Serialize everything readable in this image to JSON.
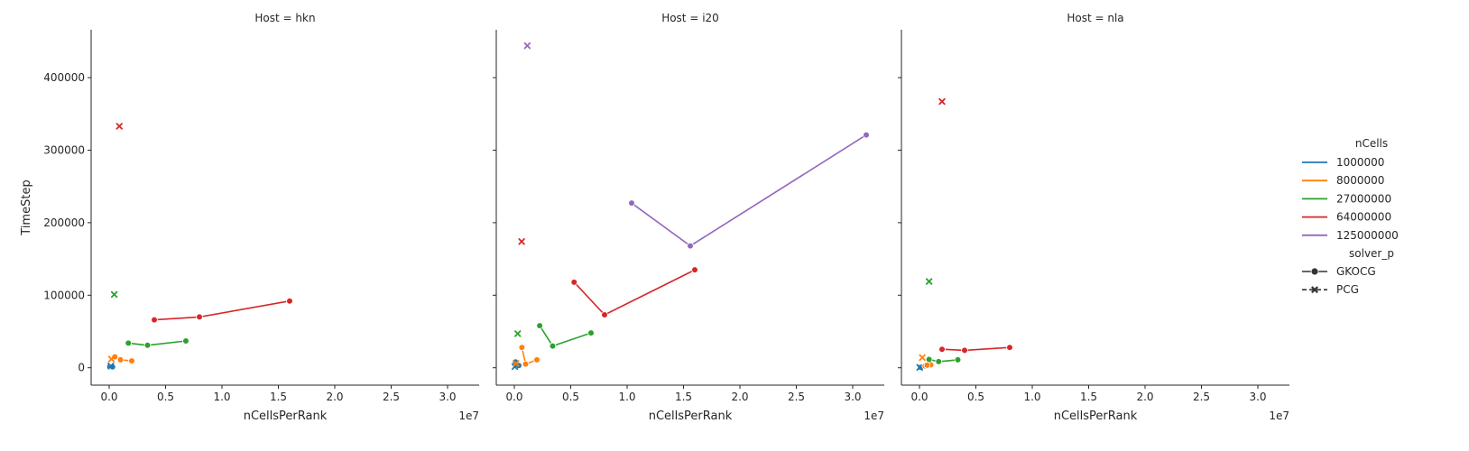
{
  "chart_data": {
    "type": "line",
    "facet_variable": "Host",
    "facets": [
      {
        "title": "Host = hkn",
        "series": [
          {
            "ncells": "1000000",
            "solver": "GKOCG",
            "points": [
              [
                50000,
                1500
              ],
              [
                300000,
                1200
              ]
            ]
          },
          {
            "ncells": "1000000",
            "solver": "PCG",
            "points": [
              [
                150000,
                2500
              ]
            ]
          },
          {
            "ncells": "8000000",
            "solver": "GKOCG",
            "points": [
              [
                500000,
                15000
              ],
              [
                1000000,
                11000
              ],
              [
                2000000,
                9500
              ]
            ]
          },
          {
            "ncells": "8000000",
            "solver": "PCG",
            "points": [
              [
                200000,
                12000
              ]
            ]
          },
          {
            "ncells": "27000000",
            "solver": "GKOCG",
            "points": [
              [
                1700000,
                34000
              ],
              [
                3400000,
                31000
              ],
              [
                6800000,
                37000
              ]
            ]
          },
          {
            "ncells": "27000000",
            "solver": "PCG",
            "points": [
              [
                450000,
                101000
              ]
            ]
          },
          {
            "ncells": "64000000",
            "solver": "GKOCG",
            "points": [
              [
                4000000,
                66000
              ],
              [
                8000000,
                70000
              ],
              [
                16000000,
                92000
              ]
            ]
          },
          {
            "ncells": "64000000",
            "solver": "PCG",
            "points": [
              [
                900000,
                333000
              ]
            ]
          }
        ]
      },
      {
        "title": "Host = i20",
        "series": [
          {
            "ncells": "1000000",
            "solver": "GKOCG",
            "points": [
              [
                100000,
                8000
              ],
              [
                250000,
                2000
              ],
              [
                400000,
                3000
              ]
            ]
          },
          {
            "ncells": "1000000",
            "solver": "PCG",
            "points": [
              [
                50000,
                1500
              ]
            ]
          },
          {
            "ncells": "8000000",
            "solver": "GKOCG",
            "points": [
              [
                670000,
                28000
              ],
              [
                1000000,
                5000
              ],
              [
                2000000,
                11000
              ]
            ]
          },
          {
            "ncells": "8000000",
            "solver": "PCG",
            "points": [
              [
                150000,
                6000
              ]
            ]
          },
          {
            "ncells": "27000000",
            "solver": "GKOCG",
            "points": [
              [
                2250000,
                58000
              ],
              [
                3400000,
                30000
              ],
              [
                6800000,
                48000
              ]
            ]
          },
          {
            "ncells": "27000000",
            "solver": "PCG",
            "points": [
              [
                300000,
                47000
              ]
            ]
          },
          {
            "ncells": "64000000",
            "solver": "GKOCG",
            "points": [
              [
                5300000,
                118000
              ],
              [
                8000000,
                73000
              ],
              [
                16000000,
                135000
              ]
            ]
          },
          {
            "ncells": "64000000",
            "solver": "PCG",
            "points": [
              [
                650000,
                174000
              ]
            ]
          },
          {
            "ncells": "125000000",
            "solver": "GKOCG",
            "points": [
              [
                10400000,
                227000
              ],
              [
                15600000,
                168000
              ],
              [
                31200000,
                321000
              ]
            ]
          },
          {
            "ncells": "125000000",
            "solver": "PCG",
            "points": [
              [
                1150000,
                444000
              ]
            ]
          }
        ]
      },
      {
        "title": "Host = nla",
        "series": [
          {
            "ncells": "1000000",
            "solver": "GKOCG",
            "points": [
              [
                50000,
                1000
              ],
              [
                100000,
                500
              ]
            ]
          },
          {
            "ncells": "1000000",
            "solver": "PCG",
            "points": [
              [
                20000,
                500
              ]
            ]
          },
          {
            "ncells": "8000000",
            "solver": "GKOCG",
            "points": [
              [
                500000,
                2500
              ],
              [
                1000000,
                4000
              ],
              [
                670000,
                3500
              ]
            ]
          },
          {
            "ncells": "8000000",
            "solver": "PCG",
            "points": [
              [
                250000,
                14000
              ]
            ]
          },
          {
            "ncells": "27000000",
            "solver": "GKOCG",
            "points": [
              [
                850000,
                11500
              ],
              [
                1700000,
                8500
              ],
              [
                3400000,
                11000
              ]
            ]
          },
          {
            "ncells": "27000000",
            "solver": "PCG",
            "points": [
              [
                850000,
                119000
              ]
            ]
          },
          {
            "ncells": "64000000",
            "solver": "GKOCG",
            "points": [
              [
                2000000,
                25500
              ],
              [
                4000000,
                24000
              ],
              [
                8000000,
                28000
              ]
            ]
          },
          {
            "ncells": "64000000",
            "solver": "PCG",
            "points": [
              [
                2000000,
                367000
              ]
            ]
          }
        ]
      }
    ],
    "xlabel": "nCellsPerRank",
    "ylabel": "TimeStep",
    "x_offset_label": "1e7",
    "xlim": [
      -1600000,
      32800000
    ],
    "ylim": [
      -24000,
      466000
    ],
    "xticks": [
      0,
      5000000,
      10000000,
      15000000,
      20000000,
      25000000,
      30000000
    ],
    "xtick_labels": [
      "0.0",
      "0.5",
      "1.0",
      "1.5",
      "2.0",
      "2.5",
      "3.0"
    ],
    "yticks": [
      0,
      100000,
      200000,
      300000,
      400000
    ],
    "ytick_labels": [
      "0",
      "100000",
      "200000",
      "300000",
      "400000"
    ],
    "grid": false,
    "legend": {
      "placement": "right",
      "hue_title": "nCells",
      "hue_entries": [
        {
          "label": "1000000",
          "key": "1000000",
          "color": "#1f77b4"
        },
        {
          "label": "8000000",
          "key": "8000000",
          "color": "#ff7f0e"
        },
        {
          "label": "27000000",
          "key": "27000000",
          "color": "#2ca02c"
        },
        {
          "label": "64000000",
          "key": "64000000",
          "color": "#d62728"
        },
        {
          "label": "125000000",
          "key": "125000000",
          "color": "#9467bd"
        }
      ],
      "style_title": "solver_p",
      "style_entries": [
        {
          "label": "GKOCG",
          "marker": "circle"
        },
        {
          "label": "PCG",
          "marker": "x"
        }
      ]
    }
  }
}
